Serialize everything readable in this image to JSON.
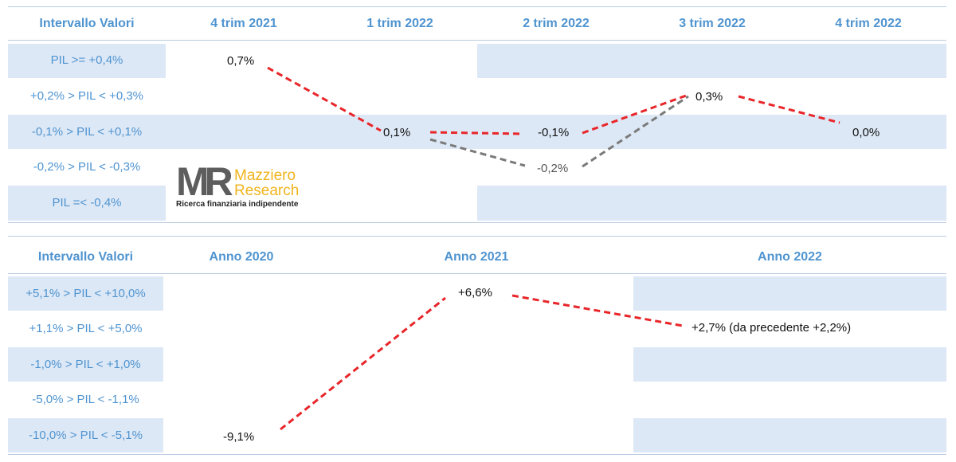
{
  "logo": {
    "mark": "MR",
    "name_line1": "Mazziero",
    "name_line2": "Research",
    "tagline": "Ricerca finanziaria indipendente"
  },
  "quarterly": {
    "header_label": "Intervallo Valori",
    "columns": [
      "4 trim 2021",
      "1 trim 2022",
      "2 trim 2022",
      "3 trim 2022",
      "4 trim 2022"
    ],
    "rows": [
      "PIL >= +0,4%",
      "+0,2% > PIL < +0,3%",
      "-0,1% > PIL < +0,1%",
      "-0,2% > PIL < -0,3%",
      "PIL =< -0,4%"
    ],
    "value_labels": [
      "0,7%",
      "0,1%",
      "-0,1%",
      "0,3%",
      "0,0%",
      "-0,2%"
    ]
  },
  "annual": {
    "header_label": "Intervallo Valori",
    "columns": [
      "Anno 2020",
      "Anno 2021",
      "Anno 2022"
    ],
    "rows": [
      "+5,1% > PIL < +10,0%",
      "+1,1% > PIL < +5,0%",
      "-1,0% > PIL < +1,0%",
      "-5,0% > PIL < -1,1%",
      "-10,0% > PIL < -5,1%"
    ],
    "value_labels": [
      "-9,1%",
      "+6,6%",
      "+2,7% (da precedente +2,2%)"
    ]
  },
  "colors": {
    "header": "#4f94d0",
    "band": "#dde8f6",
    "current_line": "#e8262a",
    "previous_line": "#7a7a7a"
  },
  "chart_data": [
    {
      "type": "line",
      "categories": [
        "4 trim 2021",
        "1 trim 2022",
        "2 trim 2022",
        "3 trim 2022",
        "4 trim 2022"
      ],
      "series": [
        {
          "line_color": "red",
          "style": "dashed",
          "values": [
            0.7,
            0.1,
            -0.1,
            0.3,
            0.0
          ]
        },
        {
          "line_color": "gray",
          "style": "dashed",
          "values": [
            null,
            0.1,
            -0.2,
            0.3,
            null
          ]
        }
      ]
    },
    {
      "type": "line",
      "categories": [
        "Anno 2020",
        "Anno 2021",
        "Anno 2022"
      ],
      "series": [
        {
          "line_color": "red",
          "style": "dashed",
          "values": [
            -9.1,
            6.6,
            2.7
          ]
        }
      ]
    }
  ]
}
